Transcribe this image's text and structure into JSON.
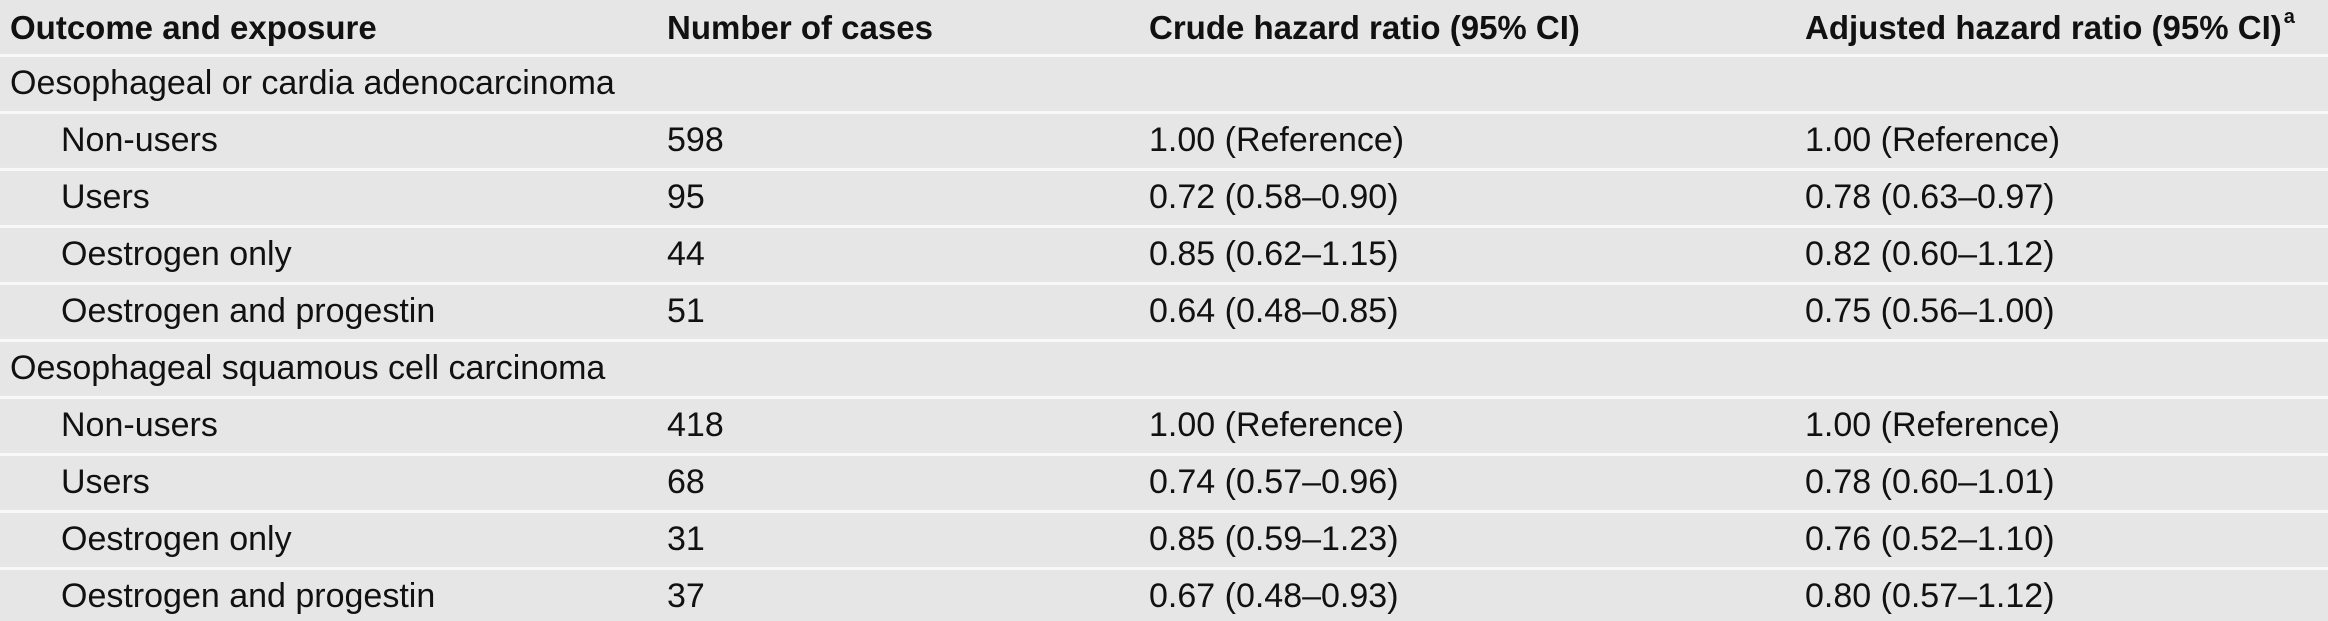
{
  "table": {
    "headers": {
      "outcome": "Outcome and exposure",
      "cases": "Number of cases",
      "crude": "Crude hazard ratio (95% CI)",
      "adjusted": "Adjusted hazard ratio (95% CI)",
      "adjusted_footnote": "a"
    },
    "rows": [
      {
        "label": "Oesophageal or cardia adenocarcinoma"
      },
      {
        "label": "Non-users",
        "cases": "598",
        "crude": "1.00 (Reference)",
        "adjusted": "1.00 (Reference)"
      },
      {
        "label": "Users",
        "cases": "95",
        "crude": "0.72 (0.58–0.90)",
        "adjusted": "0.78 (0.63–0.97)"
      },
      {
        "label": "Oestrogen only",
        "cases": "44",
        "crude": "0.85 (0.62–1.15)",
        "adjusted": "0.82 (0.60–1.12)"
      },
      {
        "label": "Oestrogen and progestin",
        "cases": "51",
        "crude": "0.64 (0.48–0.85)",
        "adjusted": "0.75 (0.56–1.00)"
      },
      {
        "label": "Oesophageal squamous cell carcinoma"
      },
      {
        "label": "Non-users",
        "cases": "418",
        "crude": "1.00 (Reference)",
        "adjusted": "1.00 (Reference)"
      },
      {
        "label": "Users",
        "cases": "68",
        "crude": "0.74 (0.57–0.96)",
        "adjusted": "0.78 (0.60–1.01)"
      },
      {
        "label": "Oestrogen only",
        "cases": "31",
        "crude": "0.85 (0.59–1.23)",
        "adjusted": "0.76 (0.52–1.10)"
      },
      {
        "label": "Oestrogen and progestin",
        "cases": "37",
        "crude": "0.67 (0.48–0.93)",
        "adjusted": "0.80 (0.57–1.12)"
      }
    ]
  }
}
